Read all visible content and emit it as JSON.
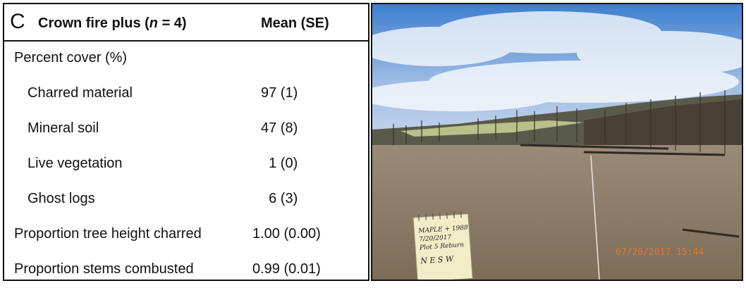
{
  "panel": {
    "letter": "C",
    "title_prefix": "Crown fire plus (",
    "title_n": "n",
    "title_suffix": " = 4)",
    "column_header": "Mean (SE)"
  },
  "rows": [
    {
      "label": "Percent cover (%)",
      "value": ""
    },
    {
      "label": "Charred material",
      "value": "97 (1)"
    },
    {
      "label": "Mineral soil",
      "value": "47 (8)"
    },
    {
      "label": "Live vegetation",
      "value": "  1 (0)"
    },
    {
      "label": "Ghost logs",
      "value": "  6 (3)"
    },
    {
      "label": "Proportion tree height charred",
      "value": "1.00 (0.00)"
    },
    {
      "label": "Proportion stems combusted",
      "value": "0.99 (0.01)"
    }
  ],
  "photo": {
    "date_stamp": "07/20/2017 15:44",
    "notepad": {
      "line1": "MAPLE + 1988",
      "line2": "7/20/2017",
      "line3": "Plot 5 Reburn",
      "line4": "N E S W"
    },
    "colors": {
      "sky_top": "#3f7fd0",
      "sky_bottom": "#c8d8ee",
      "ground": "#8a7a66",
      "date_stamp": "#e07a2a"
    }
  }
}
